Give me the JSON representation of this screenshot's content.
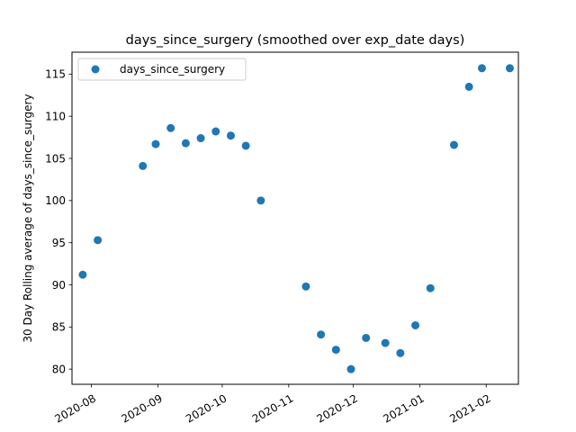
{
  "chart_data": {
    "type": "scatter",
    "title": "days_since_surgery (smoothed over exp_date days)",
    "xlabel": "",
    "ylabel": "30 Day Rolling average of days_since_surgery",
    "xlim": [
      "2020-07-23",
      "2021-02-16"
    ],
    "ylim": [
      78.2,
      117.6
    ],
    "grid": false,
    "legend": {
      "position": "upper-left",
      "entries": [
        "days_since_surgery"
      ]
    },
    "x_ticks": [
      {
        "date": "2020-08-01",
        "label": "2020-08"
      },
      {
        "date": "2020-09-01",
        "label": "2020-09"
      },
      {
        "date": "2020-10-01",
        "label": "2020-10"
      },
      {
        "date": "2020-11-01",
        "label": "2020-11"
      },
      {
        "date": "2020-12-01",
        "label": "2020-12"
      },
      {
        "date": "2021-01-01",
        "label": "2021-01"
      },
      {
        "date": "2021-02-01",
        "label": "2021-02"
      }
    ],
    "y_ticks": [
      80,
      85,
      90,
      95,
      100,
      105,
      110,
      115
    ],
    "series": [
      {
        "name": "days_since_surgery",
        "color": "#1f77b4",
        "points": [
          {
            "x": "2020-07-28",
            "y": 91.2
          },
          {
            "x": "2020-08-04",
            "y": 95.3
          },
          {
            "x": "2020-08-25",
            "y": 104.1
          },
          {
            "x": "2020-08-31",
            "y": 106.7
          },
          {
            "x": "2020-09-07",
            "y": 108.6
          },
          {
            "x": "2020-09-14",
            "y": 106.8
          },
          {
            "x": "2020-09-21",
            "y": 107.4
          },
          {
            "x": "2020-09-28",
            "y": 108.2
          },
          {
            "x": "2020-10-05",
            "y": 107.7
          },
          {
            "x": "2020-10-12",
            "y": 106.5
          },
          {
            "x": "2020-10-19",
            "y": 100.0
          },
          {
            "x": "2020-11-09",
            "y": 89.8
          },
          {
            "x": "2020-11-16",
            "y": 84.1
          },
          {
            "x": "2020-11-23",
            "y": 82.3
          },
          {
            "x": "2020-11-30",
            "y": 80.0
          },
          {
            "x": "2020-12-07",
            "y": 83.7
          },
          {
            "x": "2020-12-16",
            "y": 83.1
          },
          {
            "x": "2020-12-23",
            "y": 81.9
          },
          {
            "x": "2020-12-30",
            "y": 85.2
          },
          {
            "x": "2021-01-06",
            "y": 89.6
          },
          {
            "x": "2021-01-17",
            "y": 106.6
          },
          {
            "x": "2021-01-24",
            "y": 113.5
          },
          {
            "x": "2021-01-30",
            "y": 115.7
          },
          {
            "x": "2021-02-12",
            "y": 115.7
          }
        ]
      }
    ]
  }
}
